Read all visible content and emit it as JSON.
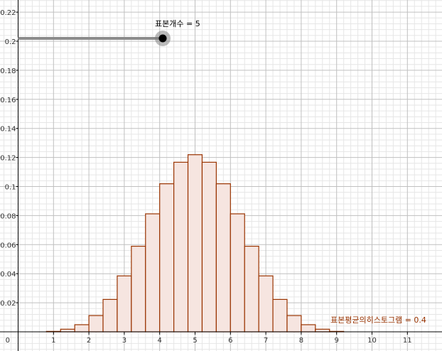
{
  "slider": {
    "label": "표본개수 = 5",
    "value": 5,
    "min": 1,
    "max": 5
  },
  "histogram": {
    "label": "표본평균의히스토그램 = 0.4"
  },
  "colors": {
    "bar_stroke": "#993300",
    "bar_fill": "#f6e5e0",
    "grid_major": "#c0c0c0",
    "grid_minor": "#e6e6e6",
    "axis": "#000000",
    "slider_track": "#8c8c8c",
    "slider_point": "#000000"
  },
  "chart_data": {
    "type": "bar",
    "title": "",
    "xlabel": "",
    "ylabel": "",
    "bin_width": 0.4,
    "xlim": [
      -0.5,
      11.8
    ],
    "ylim": [
      -0.01,
      0.222
    ],
    "x_ticks": [
      "1",
      "2",
      "3",
      "4",
      "5",
      "6",
      "7",
      "8",
      "9",
      "10",
      "11"
    ],
    "y_ticks": [
      "0.02",
      "0.04",
      "0.06",
      "0.08",
      "0.1",
      "0.12",
      "0.14",
      "0.16",
      "0.18",
      "0.2",
      "0.22"
    ],
    "origin_label": "0",
    "bin_starts": [
      0.8,
      1.2,
      1.6,
      2.0,
      2.4,
      2.8,
      3.2,
      3.6,
      4.0,
      4.4,
      4.8,
      5.2,
      5.6,
      6.0,
      6.4,
      6.8,
      7.2,
      7.6,
      8.0,
      8.4,
      8.8
    ],
    "values": [
      0.0003,
      0.0018,
      0.0049,
      0.0112,
      0.0223,
      0.0385,
      0.0589,
      0.0812,
      0.1019,
      0.1167,
      0.1219,
      0.1167,
      0.1019,
      0.0812,
      0.0589,
      0.0385,
      0.0223,
      0.0112,
      0.0049,
      0.0018,
      0.0003
    ],
    "grid": true
  }
}
